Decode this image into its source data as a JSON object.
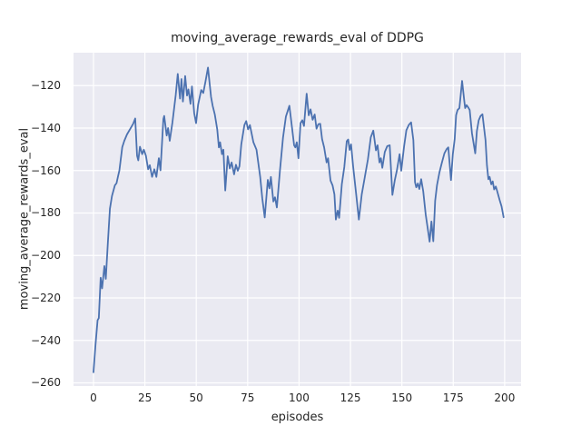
{
  "chart_data": {
    "type": "line",
    "title": "moving_average_rewards_eval of DDPG",
    "xlabel": "episodes",
    "ylabel": "moving_average_rewards_eval",
    "xlim": [
      -9.7,
      208
    ],
    "ylim": [
      -261.5,
      -104.5
    ],
    "grid": true,
    "legend": "none",
    "xticks": [
      {
        "label": "0",
        "value": 0
      },
      {
        "label": "25",
        "value": 25
      },
      {
        "label": "50",
        "value": 50
      },
      {
        "label": "75",
        "value": 75
      },
      {
        "label": "100",
        "value": 100
      },
      {
        "label": "125",
        "value": 125
      },
      {
        "label": "150",
        "value": 150
      },
      {
        "label": "175",
        "value": 175
      },
      {
        "label": "200",
        "value": 200
      }
    ],
    "yticks": [
      {
        "label": "−120",
        "value": -120
      },
      {
        "label": "−140",
        "value": -140
      },
      {
        "label": "−160",
        "value": -160
      },
      {
        "label": "−180",
        "value": -180
      },
      {
        "label": "−200",
        "value": -200
      },
      {
        "label": "−220",
        "value": -220
      },
      {
        "label": "−240",
        "value": -240
      },
      {
        "label": "−260",
        "value": -260
      }
    ],
    "colors": {
      "line": "#4C72B0",
      "plot_background": "#EAEAF2",
      "grid": "#FFFFFF",
      "text": "#262626",
      "figure_background": "#FFFFFF"
    },
    "series_name": "moving_average_rewards_eval",
    "points": [
      [
        0,
        -255
      ],
      [
        1,
        -242
      ],
      [
        2,
        -230.5
      ],
      [
        2.6,
        -229.5
      ],
      [
        3.5,
        -210.5
      ],
      [
        4.2,
        -215.5
      ],
      [
        5.3,
        -205
      ],
      [
        6,
        -211
      ],
      [
        7,
        -194
      ],
      [
        8,
        -178
      ],
      [
        9,
        -172
      ],
      [
        10.4,
        -167
      ],
      [
        11.2,
        -166
      ],
      [
        12,
        -162.5
      ],
      [
        12.6,
        -160
      ],
      [
        14,
        -149
      ],
      [
        15,
        -146
      ],
      [
        16.3,
        -143
      ],
      [
        17.8,
        -140.5
      ],
      [
        19.3,
        -138
      ],
      [
        20.3,
        -135.5
      ],
      [
        21.2,
        -153
      ],
      [
        21.8,
        -155.2
      ],
      [
        22.6,
        -148.8
      ],
      [
        23.7,
        -152.3
      ],
      [
        24.5,
        -150.2
      ],
      [
        25.5,
        -153
      ],
      [
        26.6,
        -159.4
      ],
      [
        27.4,
        -157.5
      ],
      [
        28.5,
        -163
      ],
      [
        29.6,
        -159.4
      ],
      [
        30.6,
        -163
      ],
      [
        31.8,
        -154.2
      ],
      [
        32.6,
        -159.9
      ],
      [
        34,
        -135.7
      ],
      [
        34.4,
        -134.3
      ],
      [
        35.6,
        -143.5
      ],
      [
        36.3,
        -140
      ],
      [
        37.1,
        -146
      ],
      [
        38.4,
        -137.4
      ],
      [
        40,
        -124.5
      ],
      [
        41,
        -114.5
      ],
      [
        42.1,
        -126.1
      ],
      [
        42.8,
        -116.9
      ],
      [
        43.5,
        -127.5
      ],
      [
        44.6,
        -115.5
      ],
      [
        45.5,
        -124.7
      ],
      [
        46.2,
        -121.8
      ],
      [
        47.2,
        -128.6
      ],
      [
        47.9,
        -120.4
      ],
      [
        49,
        -133
      ],
      [
        49.9,
        -137.7
      ],
      [
        50.9,
        -129
      ],
      [
        52.4,
        -122.1
      ],
      [
        53.4,
        -123.5
      ],
      [
        54.5,
        -118
      ],
      [
        55.7,
        -111.5
      ],
      [
        56.5,
        -119
      ],
      [
        57.2,
        -125.4
      ],
      [
        58,
        -129.6
      ],
      [
        59,
        -133.5
      ],
      [
        60.2,
        -140.6
      ],
      [
        61,
        -149.1
      ],
      [
        61.6,
        -146.7
      ],
      [
        62.5,
        -152.3
      ],
      [
        63.2,
        -150.2
      ],
      [
        64.1,
        -169.4
      ],
      [
        65.3,
        -153.3
      ],
      [
        66.3,
        -159
      ],
      [
        67.2,
        -156.2
      ],
      [
        68.4,
        -161.8
      ],
      [
        69.3,
        -157.3
      ],
      [
        70.2,
        -160.1
      ],
      [
        71,
        -158
      ],
      [
        71.9,
        -147.7
      ],
      [
        73.4,
        -138.6
      ],
      [
        74.3,
        -136.7
      ],
      [
        75.2,
        -140.6
      ],
      [
        76.1,
        -138.6
      ],
      [
        77.8,
        -146.7
      ],
      [
        79.3,
        -150.2
      ],
      [
        81.1,
        -163
      ],
      [
        82.1,
        -173
      ],
      [
        83.3,
        -182.1
      ],
      [
        84.8,
        -164.4
      ],
      [
        85.6,
        -168.4
      ],
      [
        86.3,
        -163
      ],
      [
        87.5,
        -174.6
      ],
      [
        88.3,
        -172.6
      ],
      [
        89.2,
        -177.4
      ],
      [
        90.7,
        -160.1
      ],
      [
        92.2,
        -144.5
      ],
      [
        93.6,
        -134.6
      ],
      [
        95.3,
        -129.5
      ],
      [
        96.6,
        -140
      ],
      [
        97.6,
        -148.1
      ],
      [
        98.2,
        -149.1
      ],
      [
        98.9,
        -146.7
      ],
      [
        99.7,
        -154.2
      ],
      [
        100.7,
        -137.7
      ],
      [
        101.6,
        -136.3
      ],
      [
        102.4,
        -139
      ],
      [
        103.7,
        -123.8
      ],
      [
        104.7,
        -134
      ],
      [
        105.6,
        -131.2
      ],
      [
        106.6,
        -136.1
      ],
      [
        107.6,
        -133.6
      ],
      [
        108.5,
        -140.3
      ],
      [
        109.4,
        -138.2
      ],
      [
        110.3,
        -138
      ],
      [
        111.2,
        -145.2
      ],
      [
        112.2,
        -149.1
      ],
      [
        113.4,
        -156.2
      ],
      [
        114.1,
        -154.2
      ],
      [
        115.3,
        -164.7
      ],
      [
        116.3,
        -167
      ],
      [
        117.2,
        -171.2
      ],
      [
        117.9,
        -183.1
      ],
      [
        118.8,
        -178.9
      ],
      [
        119.5,
        -182.3
      ],
      [
        120.8,
        -166.5
      ],
      [
        122,
        -158.4
      ],
      [
        123.2,
        -146.2
      ],
      [
        123.9,
        -145.4
      ],
      [
        124.6,
        -150.3
      ],
      [
        125.3,
        -147.7
      ],
      [
        126.3,
        -158
      ],
      [
        127.7,
        -170.4
      ],
      [
        129.1,
        -183.1
      ],
      [
        130.5,
        -171.2
      ],
      [
        132,
        -163
      ],
      [
        133.5,
        -154.7
      ],
      [
        134.9,
        -144.3
      ],
      [
        136.1,
        -141.2
      ],
      [
        137.4,
        -150.5
      ],
      [
        138.2,
        -148.1
      ],
      [
        139.1,
        -156.2
      ],
      [
        139.8,
        -154.2
      ],
      [
        140.5,
        -158.7
      ],
      [
        141.7,
        -151.3
      ],
      [
        142.9,
        -148.5
      ],
      [
        144.1,
        -148.1
      ],
      [
        145.4,
        -171.5
      ],
      [
        146.6,
        -164.4
      ],
      [
        147.6,
        -159.9
      ],
      [
        148.9,
        -152.3
      ],
      [
        149.7,
        -160.1
      ],
      [
        151.1,
        -148.5
      ],
      [
        152.2,
        -141
      ],
      [
        153.4,
        -138.5
      ],
      [
        154.5,
        -137.3
      ],
      [
        155.6,
        -145.7
      ],
      [
        156.4,
        -165.5
      ],
      [
        157,
        -167.9
      ],
      [
        157.8,
        -166.1
      ],
      [
        158.5,
        -168.7
      ],
      [
        159.4,
        -164.1
      ],
      [
        160.4,
        -169.8
      ],
      [
        161.6,
        -180.7
      ],
      [
        162.6,
        -187.4
      ],
      [
        163.5,
        -193.5
      ],
      [
        164.4,
        -184
      ],
      [
        165.3,
        -193.3
      ],
      [
        166.2,
        -174.3
      ],
      [
        167.1,
        -166.9
      ],
      [
        168.3,
        -160.8
      ],
      [
        169.5,
        -156.2
      ],
      [
        170.7,
        -151.9
      ],
      [
        171.8,
        -149.9
      ],
      [
        172.6,
        -149.1
      ],
      [
        173.9,
        -164.5
      ],
      [
        174.8,
        -152.3
      ],
      [
        175.7,
        -145.2
      ],
      [
        176.4,
        -133.9
      ],
      [
        177.1,
        -131.5
      ],
      [
        178,
        -130.6
      ],
      [
        179.3,
        -117.8
      ],
      [
        180.4,
        -127.5
      ],
      [
        180.8,
        -130.6
      ],
      [
        181.5,
        -129.2
      ],
      [
        182.3,
        -130.3
      ],
      [
        183,
        -131.5
      ],
      [
        184.1,
        -142.4
      ],
      [
        185.7,
        -151.9
      ],
      [
        186.5,
        -141.4
      ],
      [
        187.4,
        -136.3
      ],
      [
        188.3,
        -134.3
      ],
      [
        189.2,
        -133.5
      ],
      [
        190.7,
        -145.7
      ],
      [
        191.4,
        -157.6
      ],
      [
        192.1,
        -164.1
      ],
      [
        192.7,
        -163
      ],
      [
        193.5,
        -166.5
      ],
      [
        194.2,
        -165.1
      ],
      [
        194.9,
        -168.9
      ],
      [
        195.7,
        -167.5
      ],
      [
        196.4,
        -169.8
      ],
      [
        197.6,
        -174
      ],
      [
        198.5,
        -176.9
      ],
      [
        199.5,
        -182
      ]
    ]
  }
}
